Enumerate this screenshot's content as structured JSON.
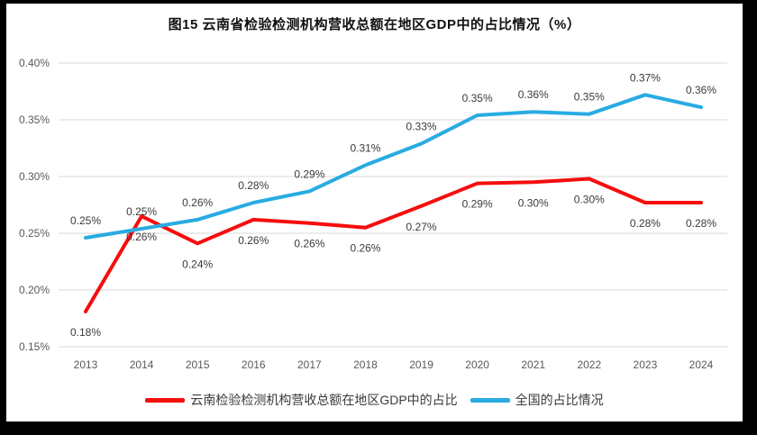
{
  "frame": {
    "background": "#ffffff",
    "border_color": "#000000"
  },
  "chart_data": {
    "type": "line",
    "title": "图15 云南省检验检测机构营收总额在地区GDP中的占比情况（%）",
    "categories": [
      "2013",
      "2014",
      "2015",
      "2016",
      "2017",
      "2018",
      "2019",
      "2020",
      "2021",
      "2022",
      "2023",
      "2024"
    ],
    "y_axis": {
      "tick_labels": [
        "0.40%",
        "0.35%",
        "0.30%",
        "0.25%",
        "0.20%",
        "0.15%"
      ],
      "tick_values": [
        0.4,
        0.35,
        0.3,
        0.25,
        0.2,
        0.15
      ],
      "min": 0.15,
      "max": 0.4
    },
    "grid": true,
    "gridline_color": "#d9d9d9",
    "axis_text_color": "#595959",
    "data_label_color": "#3a3a3a",
    "legend_position": "bottom",
    "series": [
      {
        "name": "云南检验检测机构营收总额在地区GDP中的占比",
        "color": "#f60d0d",
        "label_position": "below",
        "values": [
          0.181,
          0.265,
          0.241,
          0.262,
          0.259,
          0.255,
          0.274,
          0.294,
          0.295,
          0.298,
          0.277,
          0.277
        ],
        "labels": [
          "0.18%",
          "0.26%",
          "0.24%",
          "0.26%",
          "0.26%",
          "0.26%",
          "0.27%",
          "0.29%",
          "0.30%",
          "0.30%",
          "0.28%",
          "0.28%"
        ]
      },
      {
        "name": "全国的占比情况",
        "color": "#29abe2",
        "label_position": "above",
        "values": [
          0.246,
          0.254,
          0.262,
          0.277,
          0.287,
          0.31,
          0.329,
          0.354,
          0.357,
          0.355,
          0.372,
          0.361
        ],
        "labels": [
          "0.25%",
          "0.25%",
          "0.26%",
          "0.28%",
          "0.29%",
          "0.31%",
          "0.33%",
          "0.35%",
          "0.36%",
          "0.35%",
          "0.37%",
          "0.36%"
        ]
      }
    ]
  }
}
